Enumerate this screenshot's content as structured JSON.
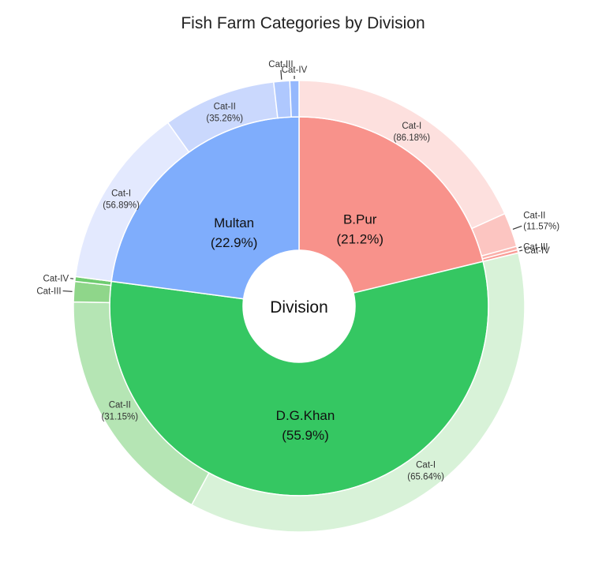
{
  "chart_data": {
    "type": "sunburst",
    "title": "Fish Farm Categories by Division",
    "center_label": "Division",
    "colors": {
      "B.Pur": {
        "inner": "#f8928b",
        "outer": [
          "#fde0de",
          "#fcc5c1",
          "#fab0aa",
          "#f99c95"
        ]
      },
      "D.G.Khan": {
        "inner": "#35c762",
        "outer": [
          "#d8f2d8",
          "#b5e5b4",
          "#8fd68a",
          "#6fcc70"
        ]
      },
      "Multan": {
        "inner": "#7fadfc",
        "outer": [
          "#e3e9fe",
          "#cad8fd",
          "#afc8fe",
          "#95b8fd"
        ]
      }
    },
    "divisions": [
      {
        "name": "B.Pur",
        "label": "B.Pur",
        "percent": 21.2,
        "percent_label": "(21.2%)",
        "categories": [
          {
            "name": "Cat-I",
            "share": 86.18,
            "share_label": "(86.18%)"
          },
          {
            "name": "Cat-II",
            "share": 11.57,
            "share_label": "(11.57%)"
          },
          {
            "name": "Cat-III",
            "share": 1.2,
            "share_label": ""
          },
          {
            "name": "Cat-IV",
            "share": 1.05,
            "share_label": ""
          }
        ]
      },
      {
        "name": "D.G.Khan",
        "label": "D.G.Khan",
        "percent": 55.9,
        "percent_label": "(55.9%)",
        "categories": [
          {
            "name": "Cat-I",
            "share": 65.64,
            "share_label": "(65.64%)"
          },
          {
            "name": "Cat-II",
            "share": 31.15,
            "share_label": "(31.15%)"
          },
          {
            "name": "Cat-III",
            "share": 2.6,
            "share_label": ""
          },
          {
            "name": "Cat-IV",
            "share": 0.61,
            "share_label": ""
          }
        ]
      },
      {
        "name": "Multan",
        "label": "Multan",
        "percent": 22.9,
        "percent_label": "(22.9%)",
        "categories": [
          {
            "name": "Cat-I",
            "share": 56.89,
            "share_label": "(56.89%)"
          },
          {
            "name": "Cat-II",
            "share": 35.26,
            "share_label": "(35.26%)"
          },
          {
            "name": "Cat-III",
            "share": 5.0,
            "share_label": ""
          },
          {
            "name": "Cat-IV",
            "share": 2.85,
            "share_label": ""
          }
        ]
      }
    ]
  }
}
